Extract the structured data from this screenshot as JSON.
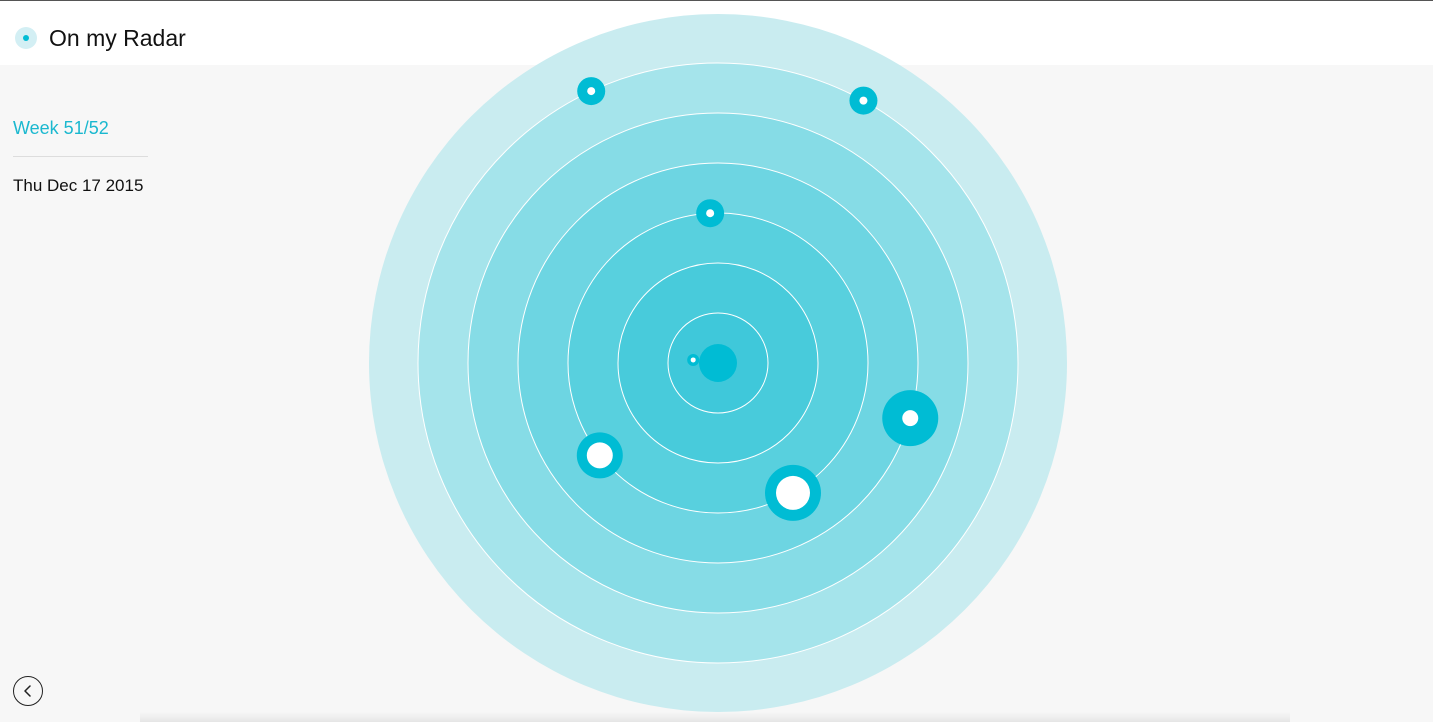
{
  "app": {
    "title": "On my Radar"
  },
  "sidebar": {
    "week_label": "Week 51/52",
    "date_label": "Thu Dec 17 2015"
  },
  "colors": {
    "accent": "#00bcd4",
    "rings": [
      "#c9ecf0",
      "#a5e4eb",
      "#86dce6",
      "#6dd5e2",
      "#58d0de",
      "#48cbdb",
      "#3fc8da"
    ]
  },
  "icons": {
    "logo": "radar-dot-icon",
    "back": "chevron-left-icon"
  },
  "radar": {
    "ring_count": 7,
    "blips": [
      {
        "ring": 6,
        "angle_deg": 61,
        "size": "small"
      },
      {
        "ring": 3,
        "angle_deg": 93,
        "size": "small"
      },
      {
        "ring": 6,
        "angle_deg": 115,
        "size": "small"
      },
      {
        "ring": 0.5,
        "angle_deg": 173,
        "size": "tiny"
      },
      {
        "ring": 3,
        "angle_deg": 218,
        "size": "medium"
      },
      {
        "ring": 3,
        "angle_deg": 300,
        "size": "large"
      },
      {
        "ring": 4,
        "angle_deg": 344,
        "size": "large"
      }
    ]
  }
}
